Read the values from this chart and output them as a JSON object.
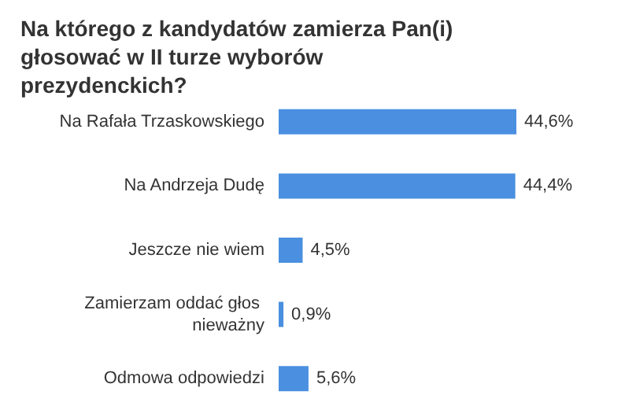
{
  "chart_data": {
    "type": "bar",
    "orientation": "horizontal",
    "title": "Na którego z kandydatów zamierza Pan(i) głosować w II turze wyborów prezydenckich?",
    "categories": [
      "Na Rafała Trzaskowskiego",
      "Na Andrzeja Dudę",
      "Jeszcze nie wiem",
      "Zamierzam oddać głos nieważny",
      "Odmowa odpowiedzi"
    ],
    "values": [
      44.6,
      44.4,
      4.5,
      0.9,
      5.6
    ],
    "value_labels": [
      "44,6%",
      "44,4%",
      "4,5%",
      "0,9%",
      "5,6%"
    ],
    "color": "#4a8fe0"
  }
}
